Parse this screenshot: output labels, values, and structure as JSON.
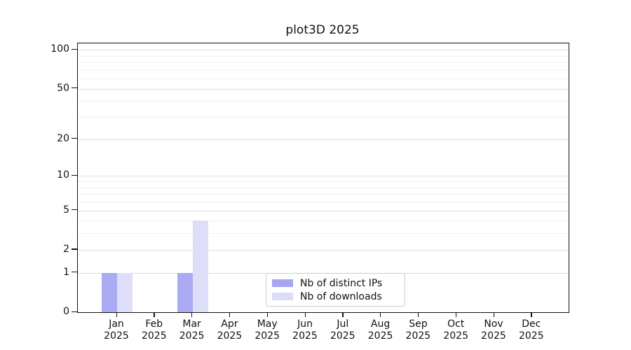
{
  "title": "plot3D 2025",
  "colors": {
    "distinct_ips": "#a6a6f3",
    "downloads": "#dcdcf9",
    "grid_major": "#dcdcdc",
    "grid_minor": "#f1f1f1",
    "axis": "#111111"
  },
  "legend": {
    "items": [
      {
        "label": "Nb of distinct IPs",
        "color": "#a6a6f3"
      },
      {
        "label": "Nb of downloads",
        "color": "#dcdcf9"
      }
    ]
  },
  "chart_data": {
    "type": "bar",
    "title": "plot3D 2025",
    "categories": [
      "Jan",
      "Feb",
      "Mar",
      "Apr",
      "May",
      "Jun",
      "Jul",
      "Aug",
      "Sep",
      "Oct",
      "Nov",
      "Dec"
    ],
    "category_year": "2025",
    "series": [
      {
        "name": "Nb of distinct IPs",
        "color": "#a6a6f3",
        "values": [
          1,
          0,
          1,
          0,
          0,
          0,
          0,
          0,
          0,
          0,
          0,
          0
        ]
      },
      {
        "name": "Nb of downloads",
        "color": "#dcdcf9",
        "values": [
          1,
          0,
          4,
          0,
          0,
          0,
          0,
          0,
          0,
          0,
          0,
          0
        ]
      }
    ],
    "yscale": "log1p",
    "ylim": [
      0,
      112
    ],
    "yticks_major": [
      0,
      1,
      2,
      5,
      10,
      20,
      50,
      100
    ],
    "yticks_minor": [
      3,
      4,
      6,
      7,
      8,
      9,
      30,
      40,
      60,
      70,
      80,
      90
    ],
    "grid": "horizontal",
    "legend_position": "lower-center-inside"
  }
}
